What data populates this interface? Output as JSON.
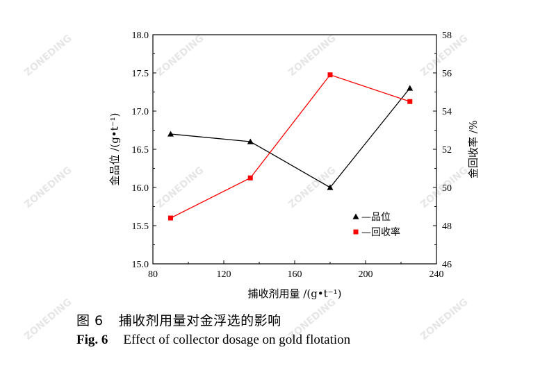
{
  "chart_data": {
    "type": "line",
    "x": [
      90,
      135,
      180,
      225
    ],
    "xlabel": "捕收剂用量 /(g•t⁻¹)",
    "ylabel_left": "金品位 /(g•t⁻¹)",
    "ylabel_right": "金回收率 /%",
    "xlim": [
      80,
      240
    ],
    "xticks": [
      80,
      120,
      160,
      200,
      240
    ],
    "ylim_left": [
      15.0,
      18.0
    ],
    "yticks_left": [
      "15.0",
      "15.5",
      "16.0",
      "16.5",
      "17.0",
      "17.5",
      "18.0"
    ],
    "ylim_right": [
      46,
      58
    ],
    "yticks_right": [
      "46",
      "48",
      "50",
      "52",
      "54",
      "56",
      "58"
    ],
    "grid": false,
    "legend_position": "lower-right",
    "series": [
      {
        "name": "—品位",
        "axis": "left",
        "values": [
          16.7,
          16.6,
          16.0,
          17.3
        ],
        "color": "#000000",
        "marker": "triangle"
      },
      {
        "name": "—回收率",
        "axis": "right",
        "values": [
          48.4,
          50.5,
          55.9,
          54.5
        ],
        "color": "#ff0000",
        "marker": "square"
      }
    ]
  },
  "caption": {
    "cn_number": "图 6",
    "cn_text": "捕收剂用量对金浮选的影响",
    "en_number": "Fig.  6",
    "en_text": "Effect of collector dosage on gold flotation"
  },
  "watermark": "ZONEDING"
}
